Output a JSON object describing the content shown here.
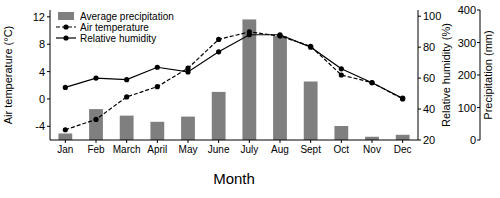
{
  "chart_data": [
    {
      "type": "bar",
      "xlabel": "Month",
      "ylabel": "Precipitation (mm)",
      "categories": [
        "Jan",
        "Feb",
        "March",
        "April",
        "May",
        "June",
        "July",
        "Aug",
        "Sept",
        "Oct",
        "Nov",
        "Dec"
      ],
      "ylim": [
        0,
        400
      ],
      "yticks": [
        0,
        100,
        200,
        300,
        400
      ],
      "legend": "upper left",
      "series": [
        {
          "name": "Average precipitation",
          "color": "#7f7f7f",
          "values": [
            20,
            95,
            75,
            56,
            72,
            148,
            371,
            320,
            180,
            43,
            10,
            16
          ]
        }
      ]
    },
    {
      "type": "line",
      "ylabel": "Air temperature (°C)",
      "ylim": [
        -6,
        13
      ],
      "yticks": [
        -4,
        0,
        4,
        8,
        12
      ],
      "series": [
        {
          "name": "Air temperature",
          "color": "#000000",
          "marker": "circle",
          "line_style": "dashed",
          "values": [
            -4.5,
            -3,
            0.3,
            1.8,
            4.5,
            8.7,
            9.8,
            9.2,
            7.7,
            3.5,
            2.4,
            0
          ]
        }
      ]
    },
    {
      "type": "line",
      "ylabel": "Relative humidity (%)",
      "ylim": [
        20,
        104
      ],
      "yticks": [
        20,
        40,
        60,
        80,
        100
      ],
      "series": [
        {
          "name": "Relative humidity",
          "color": "#000000",
          "marker": "circle",
          "line_style": "solid",
          "axis": "y2",
          "values": [
            54,
            60,
            59,
            67,
            64,
            77,
            88,
            88,
            80,
            66,
            57,
            47
          ]
        }
      ]
    }
  ]
}
